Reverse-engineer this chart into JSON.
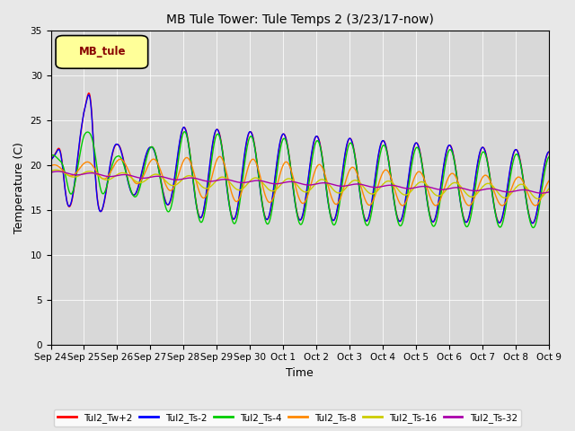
{
  "title": "MB Tule Tower: Tule Temps 2 (3/23/17-now)",
  "xlabel": "Time",
  "ylabel": "Temperature (C)",
  "ylim": [
    0,
    35
  ],
  "yticks": [
    0,
    5,
    10,
    15,
    20,
    25,
    30,
    35
  ],
  "fig_bg_color": "#e8e8e8",
  "plot_bg_color": "#d8d8d8",
  "legend_label": "MB_tule",
  "series": [
    {
      "name": "Tul2_Tw+2",
      "color": "#ff0000"
    },
    {
      "name": "Tul2_Ts-2",
      "color": "#0000ff"
    },
    {
      "name": "Tul2_Ts-4",
      "color": "#00cc00"
    },
    {
      "name": "Tul2_Ts-8",
      "color": "#ff8800"
    },
    {
      "name": "Tul2_Ts-16",
      "color": "#cccc00"
    },
    {
      "name": "Tul2_Ts-32",
      "color": "#aa00aa"
    }
  ],
  "x_tick_labels": [
    "Sep 24",
    "Sep 25",
    "Sep 26",
    "Sep 27",
    "Sep 28",
    "Sep 29",
    "Sep 30",
    "Oct 1",
    "Oct 2",
    "Oct 3",
    "Oct 4",
    "Oct 5",
    "Oct 6",
    "Oct 7",
    "Oct 8",
    "Oct 9"
  ]
}
